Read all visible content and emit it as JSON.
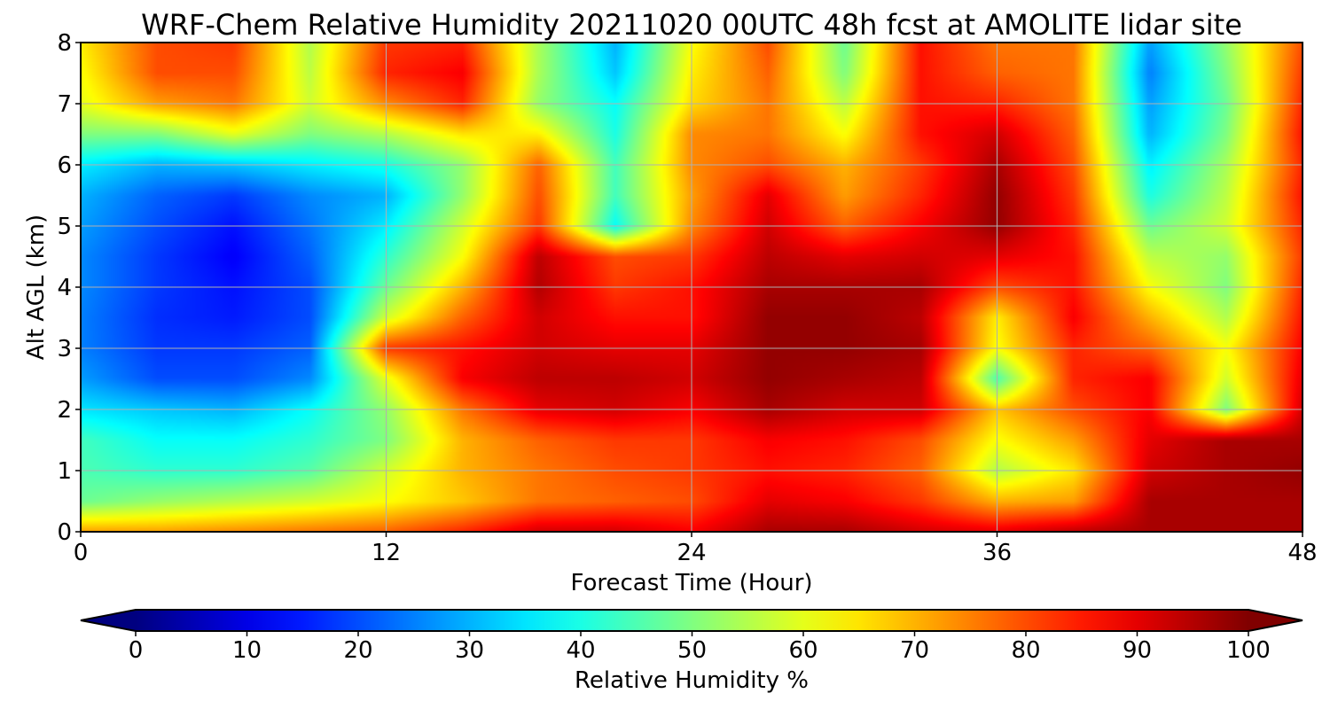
{
  "chart_data": {
    "type": "heatmap",
    "title": "WRF-Chem Relative Humidity 20211020 00UTC 48h fcst at AMOLITE lidar site",
    "xlabel": "Forecast Time (Hour)",
    "ylabel": "Alt AGL (km)",
    "xlim": [
      0,
      48
    ],
    "ylim": [
      0,
      8
    ],
    "xticks": [
      "0",
      "12",
      "24",
      "36",
      "48"
    ],
    "yticks": [
      "0",
      "1",
      "2",
      "3",
      "4",
      "5",
      "6",
      "7",
      "8"
    ],
    "grid": true,
    "colormap": "jet",
    "colorbar": {
      "label": "Relative Humidity %",
      "range": [
        0,
        100
      ],
      "ticks": [
        "0",
        "10",
        "20",
        "30",
        "40",
        "50",
        "60",
        "70",
        "80",
        "90",
        "100"
      ],
      "extend": "both",
      "orientation": "horizontal"
    },
    "x": [
      0,
      3,
      6,
      9,
      12,
      15,
      18,
      21,
      24,
      27,
      30,
      33,
      36,
      39,
      42,
      45,
      48
    ],
    "y": [
      0,
      0.5,
      1,
      1.5,
      2,
      2.5,
      3,
      3.5,
      4,
      4.5,
      5,
      5.5,
      6,
      6.5,
      7,
      7.5,
      8
    ],
    "values": [
      [
        72,
        72,
        74,
        76,
        78,
        84,
        92,
        92,
        88,
        96,
        96,
        92,
        90,
        94,
        96,
        96,
        96
      ],
      [
        48,
        52,
        55,
        58,
        62,
        68,
        76,
        78,
        80,
        90,
        88,
        82,
        70,
        72,
        96,
        96,
        96
      ],
      [
        45,
        42,
        42,
        46,
        58,
        70,
        76,
        80,
        82,
        86,
        84,
        78,
        55,
        65,
        92,
        96,
        98
      ],
      [
        44,
        38,
        38,
        42,
        50,
        70,
        78,
        82,
        82,
        88,
        86,
        80,
        62,
        72,
        90,
        96,
        96
      ],
      [
        35,
        32,
        30,
        38,
        52,
        76,
        90,
        92,
        88,
        96,
        92,
        92,
        68,
        80,
        88,
        50,
        92
      ],
      [
        28,
        20,
        20,
        26,
        60,
        88,
        94,
        94,
        92,
        98,
        96,
        94,
        45,
        84,
        88,
        58,
        90
      ],
      [
        25,
        18,
        18,
        22,
        82,
        86,
        92,
        90,
        90,
        98,
        98,
        96,
        62,
        84,
        78,
        62,
        88
      ],
      [
        25,
        17,
        15,
        20,
        58,
        78,
        92,
        86,
        86,
        98,
        98,
        94,
        64,
        88,
        70,
        55,
        86
      ],
      [
        26,
        18,
        14,
        20,
        48,
        70,
        95,
        82,
        86,
        96,
        96,
        96,
        80,
        86,
        62,
        50,
        84
      ],
      [
        26,
        18,
        12,
        22,
        42,
        62,
        94,
        80,
        82,
        94,
        90,
        92,
        90,
        86,
        56,
        52,
        82
      ],
      [
        28,
        20,
        14,
        24,
        36,
        58,
        82,
        38,
        74,
        92,
        78,
        88,
        98,
        84,
        48,
        58,
        84
      ],
      [
        30,
        22,
        18,
        26,
        30,
        52,
        80,
        44,
        72,
        90,
        72,
        84,
        98,
        82,
        40,
        56,
        86
      ],
      [
        36,
        30,
        32,
        36,
        40,
        52,
        78,
        44,
        74,
        80,
        70,
        82,
        96,
        80,
        36,
        54,
        84
      ],
      [
        50,
        50,
        60,
        50,
        55,
        65,
        64,
        40,
        74,
        76,
        62,
        86,
        92,
        78,
        30,
        50,
        86
      ],
      [
        60,
        72,
        76,
        58,
        74,
        84,
        52,
        38,
        66,
        76,
        56,
        86,
        84,
        76,
        28,
        48,
        84
      ],
      [
        62,
        80,
        80,
        56,
        84,
        88,
        54,
        32,
        64,
        78,
        50,
        86,
        78,
        76,
        25,
        50,
        82
      ],
      [
        64,
        80,
        82,
        55,
        82,
        84,
        54,
        30,
        62,
        80,
        48,
        86,
        76,
        76,
        28,
        52,
        80
      ]
    ]
  }
}
